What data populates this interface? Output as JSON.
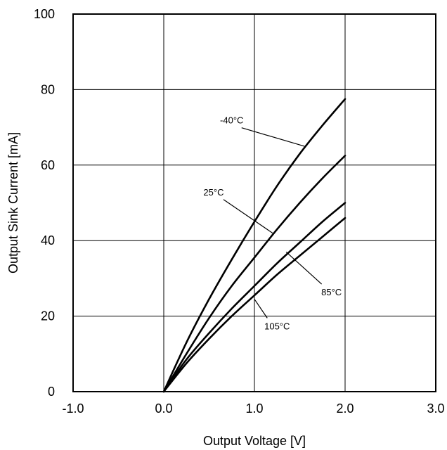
{
  "chart_data": {
    "type": "line",
    "xlabel": "Output Voltage [V]",
    "ylabel": "Output Sink Current [mA]",
    "xlim": [
      -1.0,
      3.0
    ],
    "ylim": [
      0,
      100
    ],
    "xticks": [
      -1.0,
      0.0,
      1.0,
      2.0,
      3.0
    ],
    "xtick_labels": [
      "-1.0",
      "0.0",
      "1.0",
      "2.0",
      "3.0"
    ],
    "yticks": [
      0,
      20,
      40,
      60,
      80,
      100
    ],
    "ytick_labels": [
      "0",
      "20",
      "40",
      "60",
      "80",
      "100"
    ],
    "grid": true,
    "legend": "none",
    "series": [
      {
        "name": "-40°C",
        "x": [
          0.0,
          0.25,
          0.5,
          0.75,
          1.0,
          1.25,
          1.5,
          1.75,
          2.0
        ],
        "y": [
          0,
          13,
          24.5,
          35,
          45,
          54.5,
          63,
          70.5,
          77.5
        ],
        "label_x": 0.75,
        "label_y": 71,
        "point_x": 1.55,
        "point_y": 65
      },
      {
        "name": "25°C",
        "x": [
          0.0,
          0.25,
          0.5,
          0.75,
          1.0,
          1.25,
          1.5,
          1.75,
          2.0
        ],
        "y": [
          0,
          10,
          19.5,
          28,
          35.5,
          43,
          50,
          56.5,
          62.5
        ],
        "label_x": 0.55,
        "label_y": 52,
        "point_x": 1.2,
        "point_y": 42
      },
      {
        "name": "85°C",
        "x": [
          0.0,
          0.25,
          0.5,
          0.75,
          1.0,
          1.25,
          1.5,
          1.75,
          2.0
        ],
        "y": [
          0,
          8.5,
          15.5,
          22,
          28,
          34,
          39.5,
          45,
          50
        ],
        "label_x": 1.85,
        "label_y": 25.5,
        "point_x": 1.35,
        "point_y": 37
      },
      {
        "name": "105°C",
        "x": [
          0.0,
          0.25,
          0.5,
          0.75,
          1.0,
          1.25,
          1.5,
          1.75,
          2.0
        ],
        "y": [
          0,
          7.5,
          14,
          20,
          25.5,
          31,
          36,
          41,
          46
        ],
        "label_x": 1.25,
        "label_y": 16.5,
        "point_x": 1.0,
        "point_y": 24.5
      }
    ]
  }
}
